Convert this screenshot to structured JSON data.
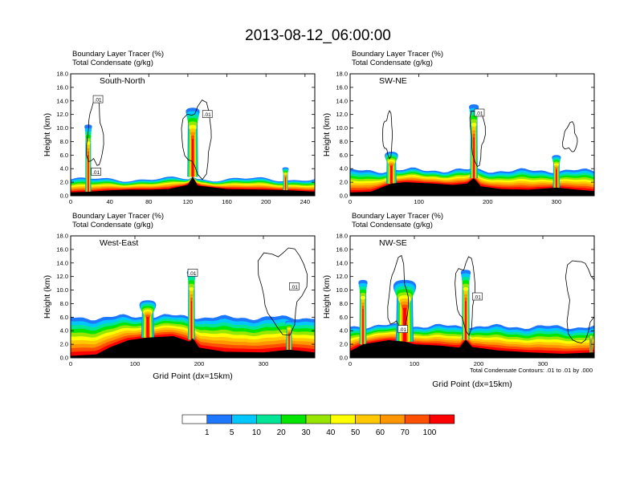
{
  "page_title": "2013-08-12_06:00:00",
  "panel_header": {
    "line1": "Boundary Layer Tracer   (%)",
    "line2": "Total Condensate   (g/kg)"
  },
  "colorbar": {
    "levels": [
      "1",
      "5",
      "10",
      "20",
      "30",
      "40",
      "50",
      "60",
      "70",
      "100"
    ],
    "colors": [
      "#ffffff",
      "#1e78ff",
      "#00c8ff",
      "#00e696",
      "#00e600",
      "#96e600",
      "#ffff00",
      "#ffc800",
      "#ff9600",
      "#ff5000",
      "#ff0000"
    ]
  },
  "footnote": "Total Condensate Contours: .01 to .01 by .000",
  "contour_label": ".01",
  "chart_data": [
    {
      "type": "heatmap",
      "title": "South-North",
      "xlabel": "",
      "ylabel": "Height (km)",
      "xlim": [
        0,
        250
      ],
      "ylim": [
        0,
        18
      ],
      "xticks": [
        "0",
        "40",
        "80",
        "120",
        "160",
        "200",
        "240"
      ],
      "yticks": [
        "0.0",
        "2.0",
        "4.0",
        "6.0",
        "8.0",
        "10.0",
        "12.0",
        "14.0",
        "16.0",
        "18.0"
      ],
      "terrain": [
        [
          0,
          0.5
        ],
        [
          20,
          0.6
        ],
        [
          40,
          0.8
        ],
        [
          60,
          0.9
        ],
        [
          80,
          0.9
        ],
        [
          100,
          1.0
        ],
        [
          120,
          1.6
        ],
        [
          125,
          2.8
        ],
        [
          130,
          1.5
        ],
        [
          160,
          1.0
        ],
        [
          200,
          0.9
        ],
        [
          225,
          0.8
        ],
        [
          250,
          0.6
        ]
      ],
      "plumes": [
        {
          "x": 18,
          "width": 12,
          "top": 10.5
        },
        {
          "x": 125,
          "width": 22,
          "top": 13.0
        },
        {
          "x": 220,
          "width": 10,
          "top": 4.2
        }
      ],
      "base_layer_top_km": 2.6,
      "contours": [
        {
          "x": 25,
          "y": 9.0,
          "width": 16,
          "height": 9.5
        },
        {
          "x": 130,
          "y": 8.5,
          "width": 30,
          "height": 10.0
        }
      ],
      "contour_labels": [
        {
          "x": 28,
          "y": 14.2
        },
        {
          "x": 26,
          "y": 3.5
        },
        {
          "x": 140,
          "y": 12.0
        }
      ],
      "marker_x": 125
    },
    {
      "type": "heatmap",
      "title": "SW-NE",
      "xlabel": "",
      "ylabel": "Height (km)",
      "xlim": [
        0,
        355
      ],
      "ylim": [
        0,
        18
      ],
      "xticks": [
        "0",
        "100",
        "200",
        "300"
      ],
      "yticks": [
        "0.0",
        "2.0",
        "4.0",
        "6.0",
        "8.0",
        "10.0",
        "12.0",
        "14.0",
        "16.0",
        "18.0"
      ],
      "terrain": [
        [
          0,
          0.5
        ],
        [
          30,
          0.6
        ],
        [
          60,
          1.8
        ],
        [
          80,
          2.0
        ],
        [
          120,
          1.8
        ],
        [
          150,
          1.6
        ],
        [
          170,
          1.8
        ],
        [
          180,
          2.6
        ],
        [
          190,
          1.4
        ],
        [
          220,
          1.0
        ],
        [
          260,
          0.9
        ],
        [
          300,
          1.2
        ],
        [
          330,
          0.9
        ],
        [
          355,
          0.7
        ]
      ],
      "plumes": [
        {
          "x": 60,
          "width": 30,
          "top": 6.5
        },
        {
          "x": 180,
          "width": 22,
          "top": 13.5
        },
        {
          "x": 300,
          "width": 20,
          "top": 6.0
        }
      ],
      "base_layer_top_km": 4.0,
      "contours": [
        {
          "x": 55,
          "y": 9.0,
          "width": 14,
          "height": 6.0
        },
        {
          "x": 185,
          "y": 9.0,
          "width": 20,
          "height": 8.0
        },
        {
          "x": 320,
          "y": 8.5,
          "width": 20,
          "height": 4.0
        }
      ],
      "contour_labels": [
        {
          "x": 188,
          "y": 12.2
        }
      ],
      "marker_x": 180
    },
    {
      "type": "heatmap",
      "title": "West-East",
      "xlabel": "Grid Point (dx=15km)",
      "ylabel": "Height (km)",
      "xlim": [
        0,
        380
      ],
      "ylim": [
        0,
        18
      ],
      "xticks": [
        "0",
        "100",
        "200",
        "300"
      ],
      "yticks": [
        "0.0",
        "2.0",
        "4.0",
        "6.0",
        "8.0",
        "10.0",
        "12.0",
        "14.0",
        "16.0",
        "18.0"
      ],
      "terrain": [
        [
          0,
          0.3
        ],
        [
          40,
          0.5
        ],
        [
          60,
          1.5
        ],
        [
          90,
          2.6
        ],
        [
          120,
          3.0
        ],
        [
          160,
          3.2
        ],
        [
          185,
          2.4
        ],
        [
          190,
          2.9
        ],
        [
          200,
          1.5
        ],
        [
          240,
          0.9
        ],
        [
          300,
          0.8
        ],
        [
          340,
          1.2
        ],
        [
          380,
          0.8
        ]
      ],
      "plumes": [
        {
          "x": 120,
          "width": 40,
          "top": 8.5
        },
        {
          "x": 188,
          "width": 22,
          "top": 13.0
        },
        {
          "x": 340,
          "width": 18,
          "top": 5.5
        }
      ],
      "base_layer_top_km": 6.5,
      "contours": [
        {
          "x": 330,
          "y": 10.5,
          "width": 70,
          "height": 12.0
        }
      ],
      "contour_labels": [
        {
          "x": 190,
          "y": 12.5
        },
        {
          "x": 348,
          "y": 10.5
        }
      ],
      "marker_x": 190
    },
    {
      "type": "heatmap",
      "title": "NW-SE",
      "xlabel": "Grid Point (dx=15km)",
      "ylabel": "Height (km)",
      "xlim": [
        0,
        380
      ],
      "ylim": [
        0,
        18
      ],
      "xticks": [
        "0",
        "100",
        "200",
        "300"
      ],
      "yticks": [
        "0.0",
        "2.0",
        "4.0",
        "6.0",
        "8.0",
        "10.0",
        "12.0",
        "14.0",
        "16.0",
        "18.0"
      ],
      "terrain": [
        [
          0,
          1.0
        ],
        [
          20,
          2.0
        ],
        [
          60,
          2.6
        ],
        [
          85,
          2.4
        ],
        [
          100,
          2.0
        ],
        [
          140,
          1.8
        ],
        [
          170,
          1.5
        ],
        [
          180,
          2.7
        ],
        [
          190,
          1.6
        ],
        [
          230,
          1.1
        ],
        [
          280,
          0.8
        ],
        [
          330,
          0.6
        ],
        [
          380,
          0.8
        ]
      ],
      "plumes": [
        {
          "x": 20,
          "width": 22,
          "top": 11.5
        },
        {
          "x": 85,
          "width": 55,
          "top": 11.5
        },
        {
          "x": 180,
          "width": 24,
          "top": 13.0
        },
        {
          "x": 375,
          "width": 10,
          "top": 4.0
        }
      ],
      "base_layer_top_km": 5.0,
      "contours": [
        {
          "x": 75,
          "y": 9.0,
          "width": 30,
          "height": 10.0
        },
        {
          "x": 180,
          "y": 9.5,
          "width": 30,
          "height": 10.0
        },
        {
          "x": 360,
          "y": 8.5,
          "width": 50,
          "height": 12.0
        }
      ],
      "contour_labels": [
        {
          "x": 82,
          "y": 4.2
        },
        {
          "x": 198,
          "y": 9.0
        }
      ],
      "marker_x": 180
    }
  ]
}
